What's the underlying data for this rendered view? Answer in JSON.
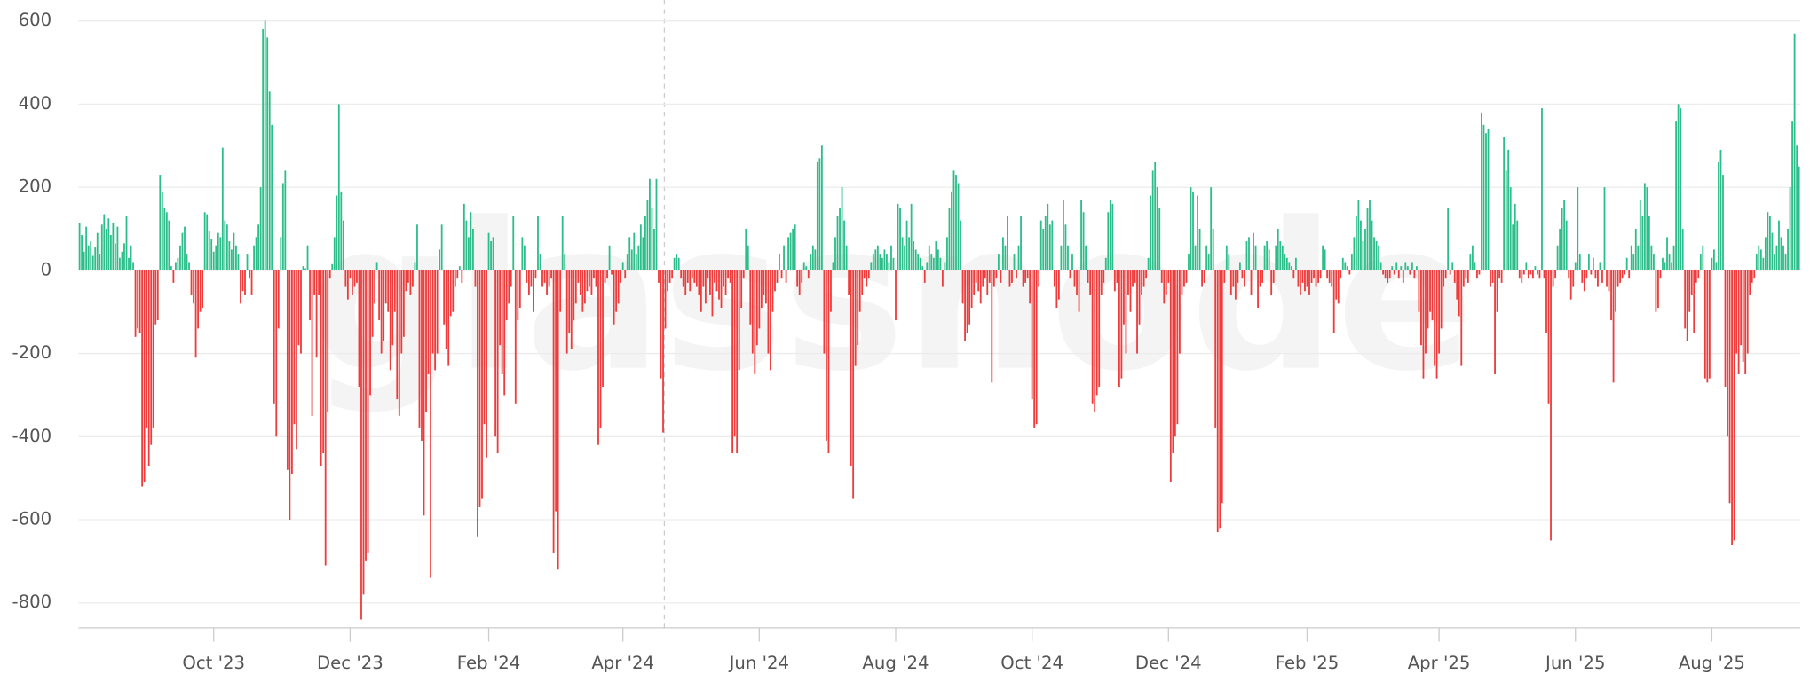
{
  "chart_data": {
    "type": "bar",
    "watermark": "glassnode",
    "colors": {
      "positive": "#2dbd8a",
      "negative": "#ee3b3b"
    },
    "grid": true,
    "ylim": [
      -860,
      620
    ],
    "yticks": [
      -800,
      -600,
      -400,
      -200,
      0,
      200,
      400,
      600
    ],
    "xticks": [
      {
        "value": 60,
        "label": "Oct '23"
      },
      {
        "value": 121,
        "label": "Dec '23"
      },
      {
        "value": 183,
        "label": "Feb '24"
      },
      {
        "value": 243,
        "label": "Apr '24"
      },
      {
        "value": 304,
        "label": "Jun '24"
      },
      {
        "value": 365,
        "label": "Aug '24"
      },
      {
        "value": 426,
        "label": "Oct '24"
      },
      {
        "value": 487,
        "label": "Dec '24"
      },
      {
        "value": 549,
        "label": "Feb '25"
      },
      {
        "value": 608,
        "label": "Apr '25"
      },
      {
        "value": 669,
        "label": "Jun '25"
      },
      {
        "value": 730,
        "label": "Aug '25"
      }
    ],
    "values": [
      115,
      85,
      45,
      105,
      60,
      70,
      35,
      55,
      90,
      40,
      110,
      135,
      100,
      125,
      85,
      115,
      65,
      105,
      30,
      45,
      65,
      130,
      30,
      60,
      20,
      -160,
      -140,
      -150,
      -520,
      -510,
      -380,
      -470,
      -420,
      -380,
      -130,
      -120,
      230,
      190,
      150,
      140,
      120,
      10,
      -30,
      20,
      30,
      60,
      90,
      105,
      40,
      20,
      -60,
      -80,
      -210,
      -140,
      -100,
      -90,
      140,
      135,
      95,
      75,
      45,
      60,
      90,
      80,
      295,
      120,
      110,
      70,
      50,
      90,
      60,
      40,
      -80,
      -50,
      -60,
      40,
      -20,
      -60,
      60,
      80,
      110,
      200,
      580,
      600,
      560,
      430,
      350,
      -320,
      -400,
      -140,
      80,
      210,
      240,
      -480,
      -600,
      -490,
      -370,
      -430,
      -180,
      -200,
      10,
      5,
      60,
      -120,
      -350,
      -60,
      -210,
      -60,
      -470,
      -440,
      -710,
      -340,
      -20,
      15,
      80,
      180,
      400,
      190,
      120,
      -40,
      -70,
      -20,
      -60,
      -40,
      -30,
      -280,
      -840,
      -780,
      -700,
      -680,
      -300,
      -160,
      -80,
      20,
      -120,
      -200,
      -170,
      -80,
      -100,
      -240,
      -180,
      -100,
      -310,
      -350,
      -200,
      -160,
      -50,
      -30,
      -60,
      -40,
      20,
      110,
      -380,
      -410,
      -590,
      -340,
      -250,
      -740,
      -200,
      -240,
      -200,
      50,
      110,
      -130,
      -190,
      -230,
      -110,
      -100,
      -40,
      -20,
      10,
      -30,
      160,
      120,
      80,
      140,
      100,
      -40,
      -640,
      -570,
      -550,
      -370,
      -450,
      90,
      70,
      80,
      -400,
      -440,
      -180,
      -250,
      -300,
      -120,
      -80,
      -40,
      130,
      -320,
      -120,
      -90,
      80,
      60,
      -30,
      -60,
      -40,
      -100,
      -20,
      130,
      40,
      -40,
      -30,
      -60,
      -40,
      -20,
      -680,
      -580,
      -720,
      -100,
      130,
      40,
      -200,
      -150,
      -190,
      -120,
      -80,
      -30,
      -60,
      -100,
      -80,
      -50,
      -40,
      -60,
      -20,
      -40,
      -420,
      -380,
      -280,
      -30,
      -20,
      60,
      -10,
      -130,
      -100,
      -80,
      -30,
      20,
      -20,
      40,
      80,
      50,
      90,
      40,
      60,
      110,
      80,
      130,
      170,
      220,
      150,
      100,
      220,
      -30,
      -260,
      -390,
      -140,
      -50,
      -30,
      -20,
      30,
      40,
      30,
      -20,
      -40,
      -60,
      -30,
      -50,
      -20,
      -30,
      -40,
      -60,
      -100,
      -40,
      -80,
      -20,
      -60,
      -110,
      -30,
      -50,
      -70,
      -90,
      -40,
      -60,
      -20,
      -30,
      -440,
      -400,
      -440,
      -240,
      -90,
      -20,
      100,
      60,
      -130,
      -200,
      -250,
      -180,
      -140,
      -90,
      -60,
      -80,
      -200,
      -240,
      -100,
      -50,
      -30,
      40,
      -20,
      60,
      -30,
      80,
      90,
      100,
      110,
      -40,
      -60,
      -30,
      20,
      10,
      -20,
      40,
      60,
      50,
      260,
      270,
      300,
      -200,
      -410,
      -440,
      -100,
      20,
      80,
      130,
      150,
      200,
      120,
      60,
      -60,
      -470,
      -550,
      -230,
      -180,
      -100,
      -60,
      -20,
      -40,
      -20,
      20,
      40,
      50,
      60,
      40,
      30,
      50,
      40,
      20,
      60,
      30,
      -120,
      160,
      150,
      80,
      60,
      120,
      80,
      160,
      70,
      50,
      40,
      30,
      10,
      -30,
      20,
      60,
      40,
      30,
      70,
      50,
      30,
      -40,
      20,
      80,
      150,
      190,
      240,
      230,
      210,
      120,
      -80,
      -170,
      -150,
      -130,
      -90,
      -60,
      -30,
      -50,
      -80,
      -40,
      -20,
      -60,
      -30,
      -270,
      -40,
      -20,
      40,
      -30,
      80,
      60,
      130,
      -40,
      -30,
      40,
      -20,
      60,
      130,
      -40,
      -30,
      -20,
      -80,
      -310,
      -380,
      -370,
      -40,
      120,
      100,
      130,
      160,
      110,
      120,
      -40,
      -90,
      -70,
      60,
      170,
      110,
      60,
      -20,
      40,
      -40,
      -60,
      -100,
      170,
      140,
      60,
      -30,
      -60,
      -320,
      -340,
      -300,
      -280,
      -60,
      -30,
      30,
      140,
      170,
      160,
      -50,
      -30,
      -280,
      -260,
      -130,
      -200,
      -60,
      -100,
      -40,
      -30,
      -200,
      -130,
      -60,
      -40,
      -20,
      30,
      180,
      240,
      260,
      200,
      150,
      -30,
      -80,
      -60,
      -30,
      -510,
      -440,
      -400,
      -370,
      -200,
      -60,
      -40,
      -30,
      40,
      200,
      190,
      60,
      180,
      100,
      -40,
      -30,
      60,
      40,
      200,
      100,
      -380,
      -630,
      -620,
      -560,
      -30,
      60,
      40,
      -60,
      -40,
      -70,
      -30,
      20,
      -20,
      -40,
      70,
      80,
      -60,
      90,
      60,
      -90,
      -40,
      -30,
      60,
      70,
      50,
      -60,
      -30,
      60,
      100,
      70,
      60,
      40,
      30,
      20,
      10,
      -20,
      30,
      -40,
      -60,
      -30,
      -50,
      -40,
      -60,
      -30,
      -20,
      -40,
      -30,
      -20,
      60,
      50,
      -20,
      -30,
      -40,
      -150,
      -70,
      -80,
      -20,
      30,
      20,
      10,
      -10,
      40,
      80,
      130,
      170,
      120,
      70,
      100,
      150,
      170,
      120,
      80,
      70,
      60,
      20,
      -10,
      -20,
      -30,
      -20,
      10,
      -10,
      20,
      -20,
      10,
      -30,
      20,
      10,
      -10,
      20,
      -20,
      10,
      -100,
      -180,
      -260,
      -200,
      -140,
      -100,
      -120,
      -230,
      -260,
      -200,
      -140,
      -40,
      -20,
      150,
      -10,
      20,
      -30,
      -70,
      -110,
      -230,
      -40,
      -20,
      -30,
      40,
      60,
      20,
      -20,
      -10,
      380,
      350,
      330,
      340,
      -40,
      -30,
      -250,
      -100,
      -20,
      -30,
      320,
      240,
      290,
      200,
      110,
      160,
      120,
      -20,
      -30,
      -10,
      20,
      -20,
      -10,
      -20,
      10,
      -10,
      -20,
      390,
      -20,
      -150,
      -320,
      -650,
      -40,
      -20,
      60,
      100,
      150,
      170,
      120,
      -20,
      -70,
      -40,
      20,
      200,
      40,
      -30,
      -50,
      -20,
      40,
      -10,
      30,
      -20,
      -40,
      20,
      -30,
      200,
      -40,
      -50,
      -120,
      -270,
      -100,
      -40,
      -30,
      -20,
      -10,
      30,
      -20,
      60,
      40,
      100,
      60,
      170,
      130,
      210,
      200,
      130,
      60,
      40,
      -100,
      -90,
      -20,
      30,
      20,
      80,
      40,
      20,
      60,
      360,
      400,
      390,
      100,
      -140,
      -170,
      -100,
      -60,
      -150,
      -30,
      -20,
      40,
      60,
      -260,
      -270,
      -260,
      30,
      50,
      20,
      260,
      290,
      230,
      -280,
      -400,
      -560,
      -660,
      -650,
      -200,
      -250,
      -180,
      -220,
      -250,
      -200,
      -60,
      -30,
      -20,
      40,
      60,
      50,
      30,
      80,
      140,
      130,
      90,
      40,
      60,
      120,
      80,
      60,
      40,
      100,
      200,
      360,
      570,
      300,
      250
    ]
  }
}
